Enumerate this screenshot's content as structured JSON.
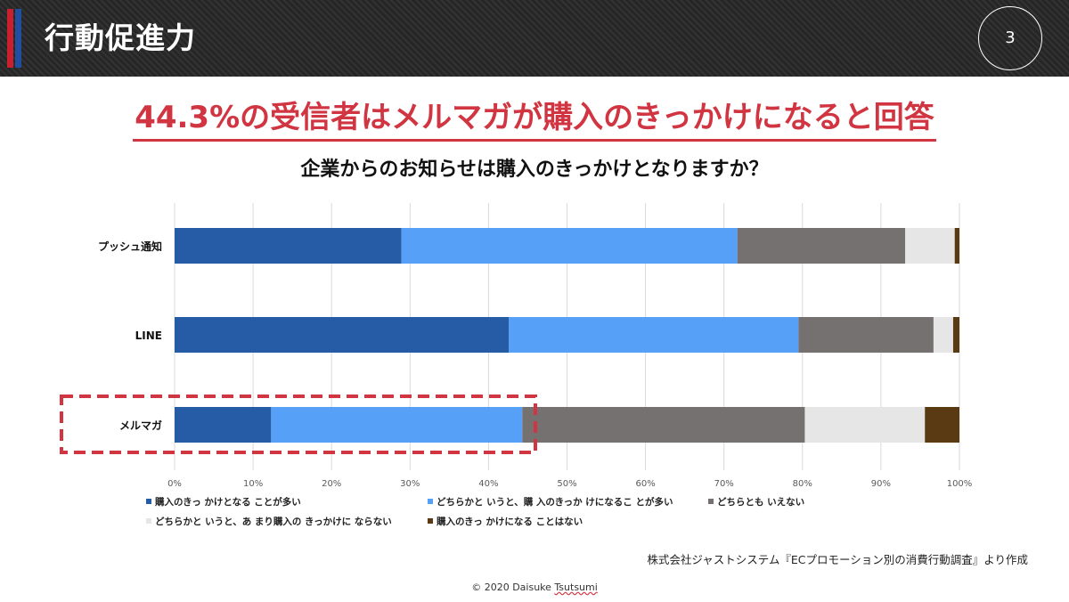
{
  "header": {
    "title": "行動促進力",
    "page_number": "3",
    "accent_colors": {
      "red": "#c8202f",
      "blue": "#1e4fa1"
    }
  },
  "headline": "44.3%の受信者はメルマガが購入のきっかけになると回答",
  "chart_data": {
    "type": "bar",
    "orientation": "horizontal",
    "stacked": true,
    "title": "企業からのお知らせは購入のきっかけとなりますか？",
    "categories": [
      "プッシュ通知",
      "LINE",
      "メルマガ"
    ],
    "xlim": [
      0,
      100
    ],
    "x_ticks": [
      "0%",
      "10%",
      "20%",
      "30%",
      "40%",
      "50%",
      "60%",
      "70%",
      "80%",
      "90%",
      "100%"
    ],
    "grid": true,
    "legend_position": "bottom-left",
    "series": [
      {
        "name": "購入のきっ かけとなる ことが多い",
        "color": "#265ba6",
        "values": [
          28.9,
          42.6,
          12.3
        ]
      },
      {
        "name": "どちらかと いうと、購 入のきっか けになるこ とが多い",
        "color": "#56a0f7",
        "values": [
          42.8,
          36.9,
          32.0
        ]
      },
      {
        "name": "どちらとも いえない",
        "color": "#767171",
        "values": [
          21.4,
          17.2,
          36.0
        ]
      },
      {
        "name": "どちらかと いうと、あ まり購入の きっかけに ならない",
        "color": "#e7e6e6",
        "values": [
          6.3,
          2.5,
          15.3
        ]
      },
      {
        "name": "購入のきっ かけになる ことはない",
        "color": "#5a3a12",
        "values": [
          0.6,
          0.8,
          4.4
        ]
      }
    ],
    "highlight": {
      "category": "メルマガ",
      "color": "#d03541",
      "style": "dashed"
    }
  },
  "source": "株式会社ジャストシステム『ECプロモーション別の消費行動調査』より作成",
  "copyright": {
    "prefix": "© 2020 Daisuke ",
    "surname": "Tsutsumi"
  }
}
